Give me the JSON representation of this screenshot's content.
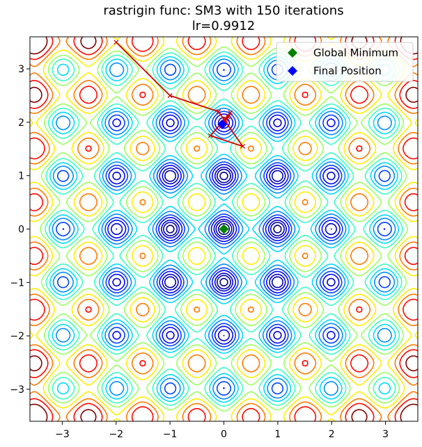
{
  "chart_data": {
    "type": "contour",
    "title": "rastrigin func: SM3 with 150 iterations",
    "subtitle": "lr=0.9912",
    "function": "rastrigin",
    "xlim": [
      -3.6,
      3.6
    ],
    "ylim": [
      -3.6,
      3.6
    ],
    "xticks": [
      -3,
      -2,
      -1,
      0,
      1,
      2,
      3
    ],
    "yticks": [
      -3,
      -2,
      -1,
      0,
      1,
      2,
      3
    ],
    "xtick_labels": [
      "−3",
      "−2",
      "−1",
      "0",
      "1",
      "2",
      "3"
    ],
    "ytick_labels": [
      "−3",
      "−2",
      "−1",
      "0",
      "1",
      "2",
      "3"
    ],
    "contour_levels": [
      2,
      4,
      6,
      9,
      12,
      16,
      20,
      25,
      30,
      36,
      42,
      48,
      55
    ],
    "colormap": "jet",
    "grid": false,
    "legend_position": "top-right",
    "legend": [
      {
        "label": "Global Minimum",
        "marker": "diamond",
        "color": "#008000"
      },
      {
        "label": "Final Position",
        "marker": "diamond",
        "color": "#0000ff"
      }
    ],
    "path_color": "#d40000",
    "path": [
      [
        -2.0,
        3.5
      ],
      [
        -1.0,
        2.5
      ],
      [
        -0.1,
        2.2
      ],
      [
        0.35,
        1.55
      ],
      [
        -0.25,
        1.75
      ],
      [
        0.12,
        2.18
      ],
      [
        -0.05,
        1.92
      ],
      [
        0.08,
        2.1
      ],
      [
        -0.03,
        1.98
      ],
      [
        0.04,
        2.06
      ],
      [
        -0.02,
        1.99
      ],
      [
        0.03,
        2.03
      ],
      [
        0.0,
        2.0
      ],
      [
        0.02,
        2.02
      ],
      [
        -0.01,
        1.99
      ]
    ],
    "global_minimum": [
      0,
      0
    ],
    "final_position": [
      -0.03,
      1.96
    ]
  }
}
